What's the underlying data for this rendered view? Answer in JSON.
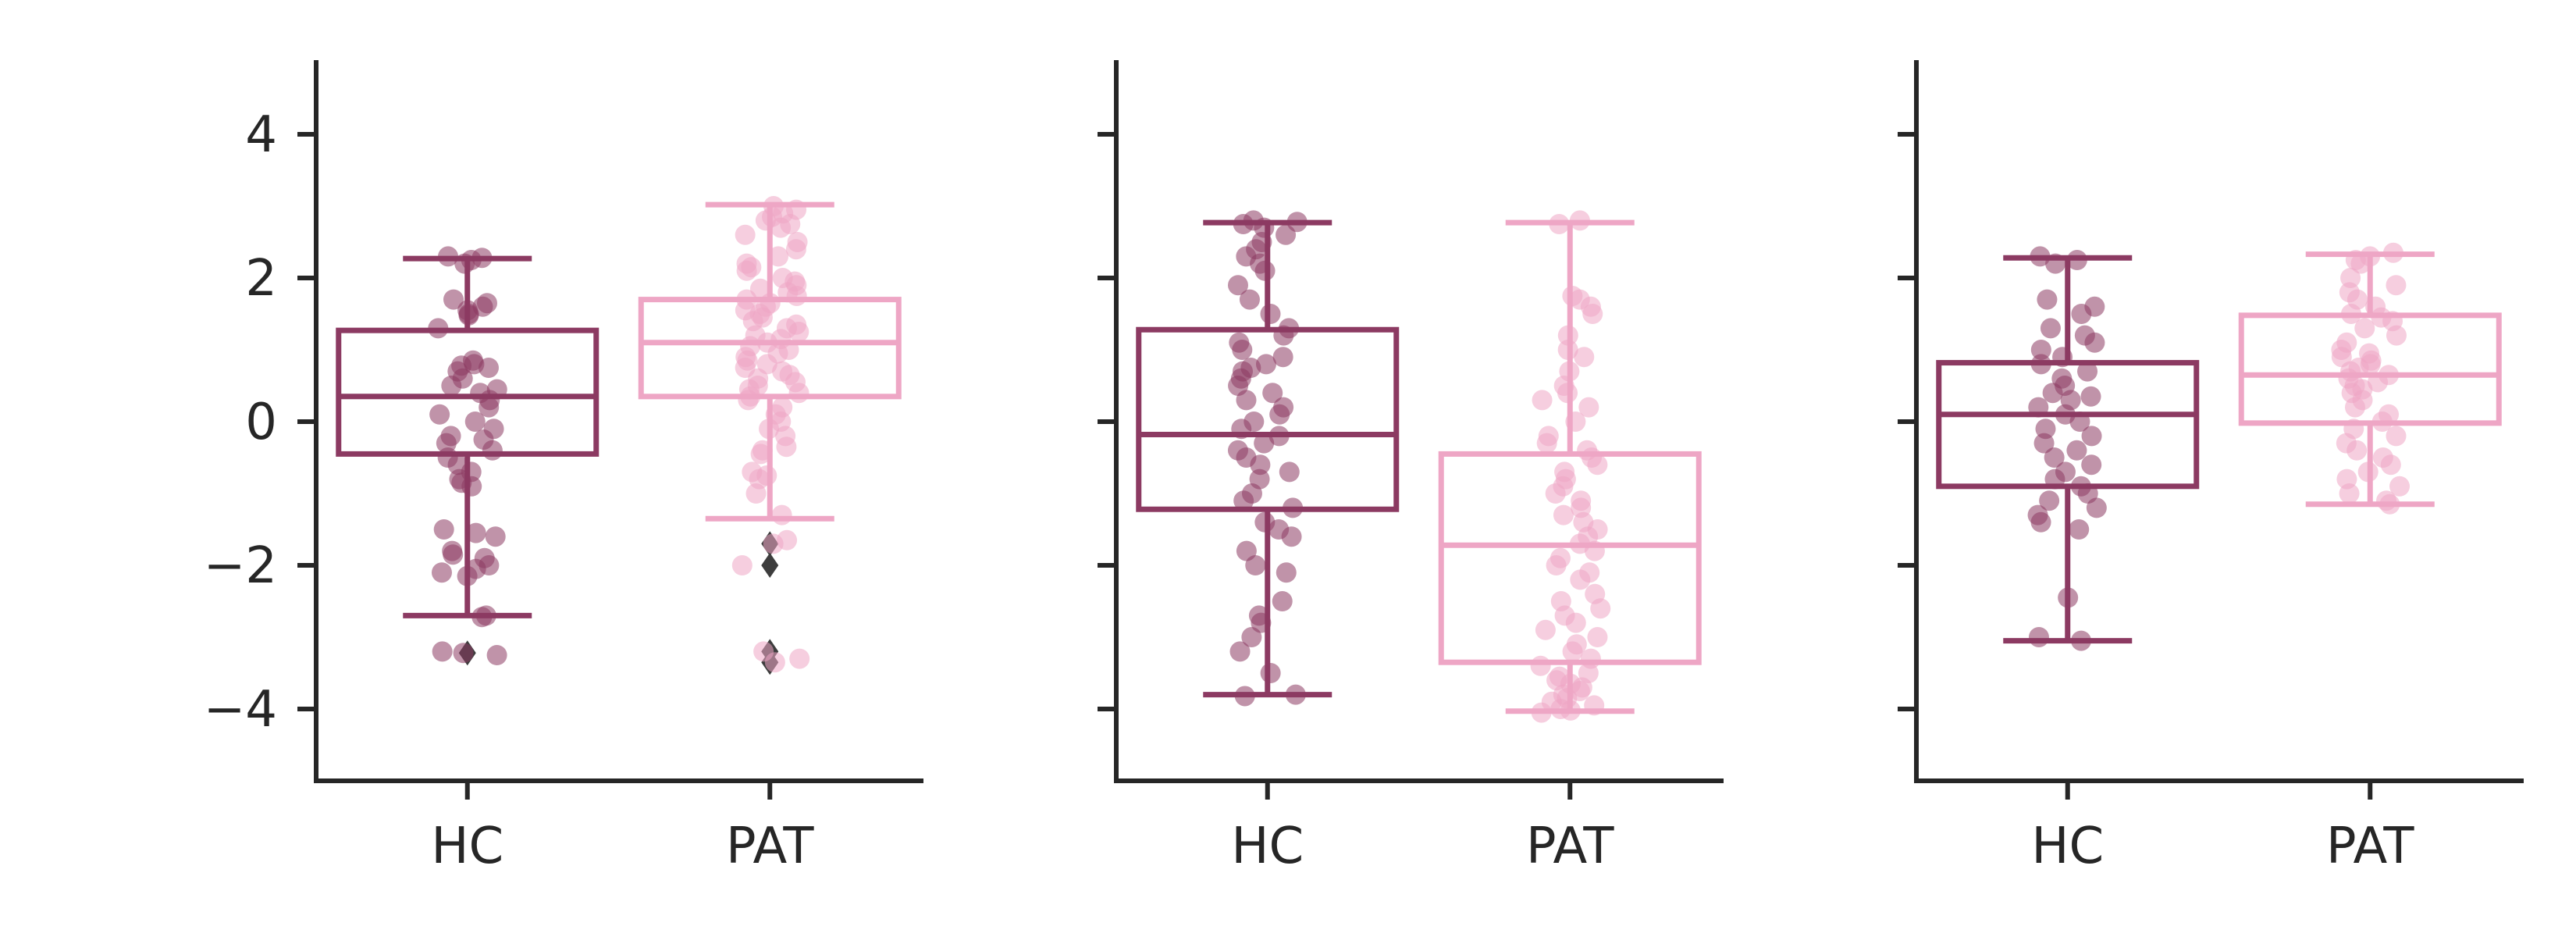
{
  "chart_data": [
    {
      "type": "box",
      "categories": [
        "HC",
        "PAT"
      ],
      "ylim": [
        -5,
        5
      ],
      "yticks": [
        "4",
        "2",
        "0",
        "−2",
        "−4"
      ],
      "ytick_values": [
        4,
        2,
        0,
        -2,
        -4
      ],
      "show_yticklabels": true,
      "grid": false,
      "series": [
        {
          "category": "HC",
          "color": "#8C3A62",
          "box": {
            "q1": -0.45,
            "median": 0.35,
            "q3": 1.27,
            "whisker_low": -2.7,
            "whisker_high": 2.27
          },
          "outliers": [
            -3.22
          ],
          "points": [
            2.3,
            2.28,
            2.25,
            2.2,
            1.7,
            1.65,
            1.6,
            1.55,
            1.5,
            1.48,
            1.3,
            0.85,
            0.8,
            0.78,
            0.75,
            0.7,
            0.6,
            0.5,
            0.45,
            0.4,
            0.3,
            0.2,
            0.1,
            0.0,
            -0.1,
            -0.2,
            -0.25,
            -0.3,
            -0.4,
            -0.5,
            -0.6,
            -0.7,
            -0.8,
            -0.85,
            -0.9,
            -1.5,
            -1.55,
            -1.6,
            -1.8,
            -1.85,
            -1.9,
            -2.0,
            -2.05,
            -2.1,
            -2.15,
            -2.7,
            -2.72,
            -3.2,
            -3.22,
            -3.25
          ]
        },
        {
          "category": "PAT",
          "color": "#EEA6C5",
          "box": {
            "q1": 0.35,
            "median": 1.1,
            "q3": 1.7,
            "whisker_low": -1.35,
            "whisker_high": 3.02
          },
          "outliers": [
            -1.7,
            -2.0,
            -3.2,
            -3.35
          ],
          "points": [
            3.0,
            2.95,
            2.9,
            2.85,
            2.8,
            2.75,
            2.7,
            2.6,
            2.5,
            2.4,
            2.3,
            2.2,
            2.15,
            2.1,
            2.0,
            1.95,
            1.9,
            1.85,
            1.8,
            1.75,
            1.7,
            1.65,
            1.6,
            1.55,
            1.5,
            1.45,
            1.4,
            1.35,
            1.3,
            1.25,
            1.2,
            1.15,
            1.1,
            1.05,
            1.0,
            0.95,
            0.9,
            0.85,
            0.8,
            0.75,
            0.7,
            0.65,
            0.6,
            0.55,
            0.5,
            0.45,
            0.4,
            0.35,
            0.3,
            0.2,
            0.1,
            0.0,
            -0.1,
            -0.2,
            -0.35,
            -0.4,
            -0.45,
            -0.7,
            -0.75,
            -0.8,
            -1.0,
            -1.3,
            -1.65,
            -1.7,
            -2.0,
            -3.2,
            -3.3,
            -3.35
          ]
        }
      ]
    },
    {
      "type": "box",
      "categories": [
        "HC",
        "PAT"
      ],
      "ylim": [
        -5,
        5
      ],
      "yticks": [
        "4",
        "2",
        "0",
        "−2",
        "−4"
      ],
      "ytick_values": [
        4,
        2,
        0,
        -2,
        -4
      ],
      "show_yticklabels": false,
      "grid": false,
      "series": [
        {
          "category": "HC",
          "color": "#8C3A62",
          "box": {
            "q1": -1.22,
            "median": -0.18,
            "q3": 1.28,
            "whisker_low": -3.8,
            "whisker_high": 2.77
          },
          "outliers": [],
          "points": [
            2.8,
            2.78,
            2.75,
            2.7,
            2.6,
            2.5,
            2.4,
            2.3,
            2.2,
            2.1,
            1.9,
            1.7,
            1.5,
            1.3,
            1.2,
            1.1,
            1.0,
            0.9,
            0.8,
            0.75,
            0.7,
            0.6,
            0.5,
            0.4,
            0.3,
            0.2,
            0.1,
            0.0,
            -0.1,
            -0.2,
            -0.3,
            -0.4,
            -0.5,
            -0.6,
            -0.7,
            -0.8,
            -1.0,
            -1.1,
            -1.2,
            -1.4,
            -1.5,
            -1.6,
            -1.8,
            -2.0,
            -2.1,
            -2.5,
            -2.7,
            -2.8,
            -3.0,
            -3.2,
            -3.5,
            -3.8,
            -3.82
          ]
        },
        {
          "category": "PAT",
          "color": "#EEA6C5",
          "box": {
            "q1": -3.35,
            "median": -1.72,
            "q3": -0.45,
            "whisker_low": -4.03,
            "whisker_high": 2.77
          },
          "outliers": [],
          "points": [
            2.8,
            2.75,
            1.75,
            1.7,
            1.6,
            1.5,
            1.2,
            1.0,
            0.9,
            0.7,
            0.5,
            0.4,
            0.3,
            0.2,
            0.0,
            -0.2,
            -0.3,
            -0.4,
            -0.5,
            -0.6,
            -0.7,
            -0.8,
            -0.9,
            -1.0,
            -1.1,
            -1.2,
            -1.3,
            -1.4,
            -1.5,
            -1.6,
            -1.7,
            -1.8,
            -1.9,
            -2.0,
            -2.1,
            -2.2,
            -2.4,
            -2.5,
            -2.6,
            -2.7,
            -2.8,
            -2.9,
            -3.0,
            -3.1,
            -3.2,
            -3.3,
            -3.4,
            -3.5,
            -3.55,
            -3.6,
            -3.65,
            -3.7,
            -3.75,
            -3.8,
            -3.85,
            -3.9,
            -3.95,
            -4.0,
            -4.02,
            -4.05
          ]
        }
      ]
    },
    {
      "type": "box",
      "categories": [
        "HC",
        "PAT"
      ],
      "ylim": [
        -5,
        5
      ],
      "yticks": [
        "4",
        "2",
        "0",
        "−2",
        "−4"
      ],
      "ytick_values": [
        4,
        2,
        0,
        -2,
        -4
      ],
      "show_yticklabels": false,
      "grid": false,
      "series": [
        {
          "category": "HC",
          "color": "#8C3A62",
          "box": {
            "q1": -0.9,
            "median": 0.1,
            "q3": 0.82,
            "whisker_low": -3.05,
            "whisker_high": 2.28
          },
          "outliers": [],
          "points": [
            2.3,
            2.25,
            2.2,
            1.7,
            1.6,
            1.5,
            1.3,
            1.2,
            1.1,
            1.0,
            0.9,
            0.8,
            0.7,
            0.6,
            0.5,
            0.4,
            0.35,
            0.3,
            0.2,
            0.1,
            0.0,
            -0.1,
            -0.2,
            -0.3,
            -0.4,
            -0.5,
            -0.6,
            -0.7,
            -0.8,
            -0.9,
            -1.0,
            -1.1,
            -1.2,
            -1.3,
            -1.4,
            -1.5,
            -2.45,
            -3.0,
            -3.05
          ]
        },
        {
          "category": "PAT",
          "color": "#EEA6C5",
          "box": {
            "q1": -0.02,
            "median": 0.65,
            "q3": 1.48,
            "whisker_low": -1.15,
            "whisker_high": 2.33
          },
          "outliers": [],
          "points": [
            2.35,
            2.3,
            2.25,
            2.2,
            2.0,
            1.9,
            1.8,
            1.7,
            1.6,
            1.5,
            1.45,
            1.4,
            1.3,
            1.2,
            1.1,
            1.0,
            0.95,
            0.9,
            0.85,
            0.8,
            0.75,
            0.7,
            0.65,
            0.6,
            0.55,
            0.5,
            0.45,
            0.4,
            0.3,
            0.2,
            0.1,
            0.0,
            -0.1,
            -0.2,
            -0.3,
            -0.4,
            -0.5,
            -0.6,
            -0.7,
            -0.8,
            -0.9,
            -1.0,
            -1.1,
            -1.15
          ]
        }
      ]
    }
  ]
}
